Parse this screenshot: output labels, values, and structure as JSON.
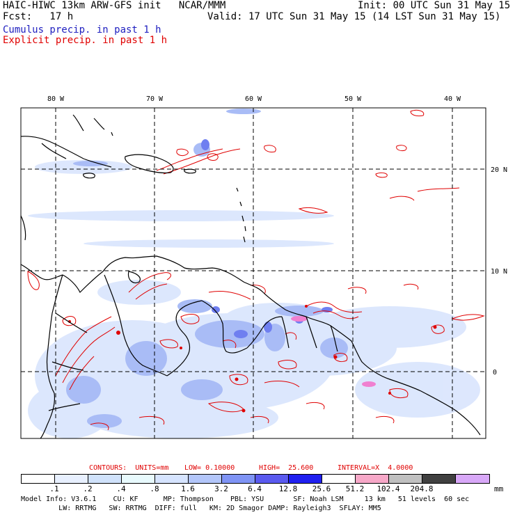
{
  "header": {
    "line1_left": "HAIC-HIWC 13km ARW-GFS init   NCAR/MMM",
    "line1_right": "Init: 00 UTC Sun 31 May 15",
    "line2_left": "Fcst:   17 h",
    "line2_right": "Valid: 17 UTC Sun 31 May 15 (14 LST Sun 31 May 15)",
    "line3": "Cumulus precip. in past 1 h",
    "line4": "Explicit precip. in past 1 h"
  },
  "map": {
    "lon_labels": [
      "80 W",
      "70 W",
      "60 W",
      "50 W",
      "40 W"
    ],
    "lat_labels": [
      "20 N",
      "10 N",
      "0"
    ]
  },
  "contours_line": {
    "contours": "CONTOURS:  UNITS=mm",
    "low": "LOW= 0.10000",
    "high": "HIGH=  25.600",
    "interval": "INTERVAL=X  4.0000"
  },
  "colorbar": {
    "levels": [
      ".1",
      ".2",
      ".4",
      ".8",
      "1.6",
      "3.2",
      "6.4",
      "12.8",
      "25.6",
      "51.2",
      "102.4",
      "204.8"
    ],
    "unit": "mm",
    "colors": [
      "#ffffff",
      "#e8f0ff",
      "#d0e2fb",
      "#e8fafd",
      "#d6e4ff",
      "#b3c6fa",
      "#7f94f5",
      "#5a5aef",
      "#2020f0",
      "#ffffff",
      "#f7a8c8",
      "#c0c0c0",
      "#404040",
      "#d8a8f8"
    ]
  },
  "model_info": {
    "line1": "Model Info: V3.6.1    CU: KF      MP: Thompson    PBL: YSU       SF: Noah LSM     13 km   51 levels  60 sec",
    "line2": "         LW: RRTMG   SW: RRTMG  DIFF: full   KM: 2D Smagor DAMP: Rayleigh3  SFLAY: MM5"
  }
}
